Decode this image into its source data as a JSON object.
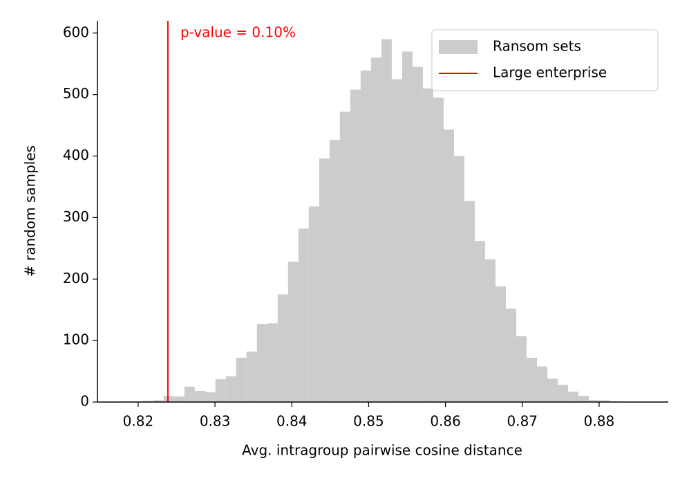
{
  "chart_data": {
    "type": "histogram",
    "xlabel": "Avg. intragroup pairwise cosine distance",
    "ylabel": "# random samples",
    "annotation": "p-value = 0.10%",
    "bins": [
      0.81791,
      0.81926,
      0.82061,
      0.82196,
      0.82331,
      0.82466,
      0.82601,
      0.82736,
      0.82871,
      0.83006,
      0.83141,
      0.83276,
      0.83411,
      0.83546,
      0.83681,
      0.83816,
      0.83951,
      0.84086,
      0.84221,
      0.84356,
      0.84491,
      0.84626,
      0.84761,
      0.84896,
      0.85031,
      0.85166,
      0.85301,
      0.85436,
      0.85571,
      0.85706,
      0.85841,
      0.85976,
      0.86111,
      0.86246,
      0.86381,
      0.86516,
      0.86651,
      0.86786,
      0.86921,
      0.87056,
      0.87191,
      0.87326,
      0.87461,
      0.87596,
      0.87731,
      0.87866,
      0.88001,
      0.88136,
      0.88271,
      0.88406
    ],
    "series": [
      {
        "name": "Ransom sets",
        "color": "#cccccc",
        "values": [
          1,
          1,
          2,
          3,
          10,
          9,
          25,
          18,
          16,
          37,
          42,
          72,
          82,
          127,
          128,
          175,
          228,
          282,
          318,
          396,
          426,
          472,
          508,
          539,
          560,
          590,
          525,
          570,
          545,
          510,
          495,
          443,
          400,
          327,
          262,
          232,
          188,
          152,
          107,
          72,
          58,
          38,
          28,
          17,
          10,
          3,
          3,
          1,
          0
        ]
      }
    ],
    "reference_line": {
      "name": "Large enterprise",
      "x": 0.82387,
      "color": "#ff0000"
    },
    "xlim": [
      0.8147,
      0.889
    ],
    "ylim": [
      0,
      620
    ],
    "xticks": [
      0.82,
      0.83,
      0.84,
      0.85,
      0.86,
      0.87,
      0.88
    ],
    "yticks": [
      0,
      100,
      200,
      300,
      400,
      500,
      600
    ],
    "legend": "upper right"
  }
}
